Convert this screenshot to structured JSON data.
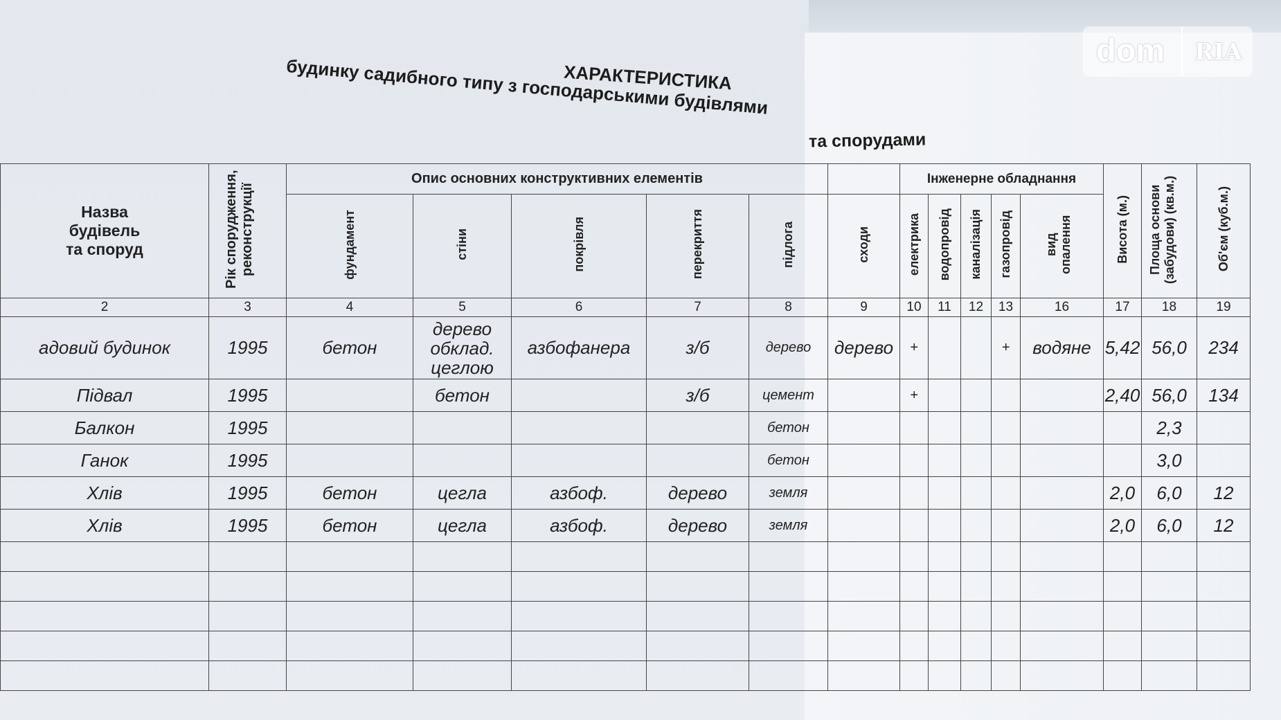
{
  "watermark": {
    "left": "dom",
    "right": "RIA"
  },
  "title": {
    "line1": "ХАРАКТЕРИСТИКА",
    "line2": "будинку садибного типу з господарськими будівлями",
    "line3": "та спорудами"
  },
  "header": {
    "name": "Назва будівель та споруд",
    "year": "Рік спорудження, реконструкції",
    "group_construct": "Опис основних конструктивних елементів",
    "group_engineering": "Інженерне обладнання",
    "columns": [
      "фундамент",
      "стіни",
      "покрівля",
      "перекриття",
      "підлога",
      "сходи",
      "електрика",
      "водопровід",
      "каналізація",
      "газопровід",
      "вид опалення",
      "Висота (м.)",
      "Площа основи (забудови) (кв.м.)",
      "Об'єм (куб.м.)"
    ]
  },
  "column_numbers": [
    "2",
    "3",
    "4",
    "5",
    "6",
    "7",
    "8",
    "9",
    "10",
    "11",
    "12",
    "13",
    "16",
    "17",
    "18",
    "19"
  ],
  "rows": [
    [
      "адовий будинок",
      "1995",
      "бетон",
      "дерево обклад. цеглою",
      "азбофанера",
      "з/б",
      "дерево",
      "дерево",
      "+",
      "",
      "",
      "+",
      "водяне",
      "5,42",
      "56,0",
      "234"
    ],
    [
      "Підвал",
      "1995",
      "",
      "бетон",
      "",
      "з/б",
      "цемент",
      "",
      "+",
      "",
      "",
      "",
      "",
      "2,40",
      "56,0",
      "134"
    ],
    [
      "Балкон",
      "1995",
      "",
      "",
      "",
      "",
      "бетон",
      "",
      "",
      "",
      "",
      "",
      "",
      "",
      "2,3",
      ""
    ],
    [
      "Ганок",
      "1995",
      "",
      "",
      "",
      "",
      "бетон",
      "",
      "",
      "",
      "",
      "",
      "",
      "",
      "3,0",
      ""
    ],
    [
      "Хлів",
      "1995",
      "бетон",
      "цегла",
      "азбоф.",
      "дерево",
      "земля",
      "",
      "",
      "",
      "",
      "",
      "",
      "2,0",
      "6,0",
      "12"
    ],
    [
      "Хлів",
      "1995",
      "бетон",
      "цегла",
      "азбоф.",
      "дерево",
      "земля",
      "",
      "",
      "",
      "",
      "",
      "",
      "2,0",
      "6,0",
      "12"
    ]
  ]
}
